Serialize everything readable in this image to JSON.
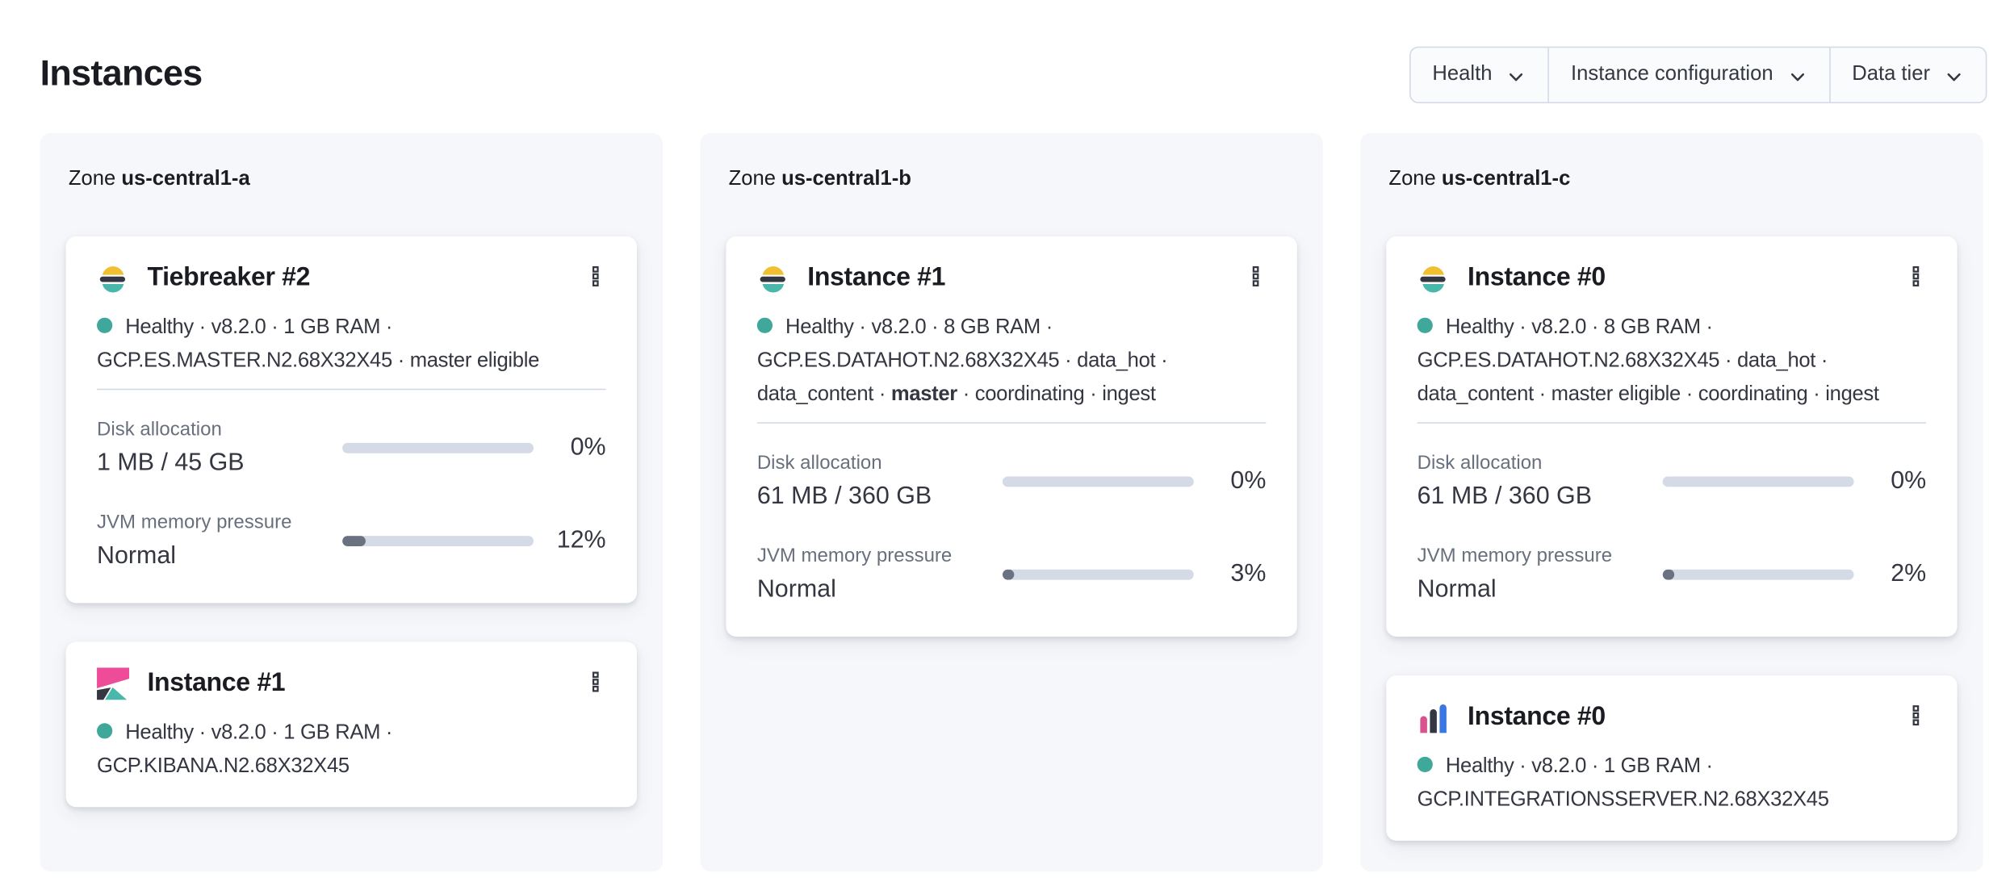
{
  "page": {
    "title": "Instances"
  },
  "filters": [
    {
      "label": "Health"
    },
    {
      "label": "Instance configuration"
    },
    {
      "label": "Data tier"
    }
  ],
  "icons": {
    "filter_button_caret": "chevron-down-icon",
    "card_menu": "kebab-boxes-vertical-icon",
    "health_indicator": "status-dot",
    "logos": [
      "elasticsearch-logo",
      "kibana-logo",
      "integrations-server-logo"
    ]
  },
  "colors": {
    "health_dot": "#40a79b",
    "panel_background": "#f6f7fa",
    "card_background": "#ffffff",
    "border": "#d3dae6",
    "progress_track": "#d5dbe6",
    "progress_fill": "#6a7180",
    "text_primary": "#1a1c21",
    "text_body": "#343741",
    "text_subdued": "#69707d",
    "logo_yellow": "#f1c030",
    "logo_teal": "#49b8aa",
    "logo_dark": "#343741",
    "logo_pink": "#ee4c98",
    "logo_bar_pink": "#d9548f",
    "logo_bar_blue": "#3b77e0"
  },
  "zones": [
    {
      "label": "Zone",
      "name": "us-central1-a",
      "instances": [
        {
          "title": "Tiebreaker #2",
          "logo": "elasticsearch-logo",
          "meta": [
            {
              "text": "Healthy"
            },
            {
              "text": "v8.2.0"
            },
            {
              "text": "1 GB RAM"
            },
            {
              "text": "GCP.ES.MASTER.N2.68X32X45"
            },
            {
              "text": "master eligible"
            }
          ],
          "metrics": [
            {
              "label": "Disk allocation",
              "value": "1 MB / 45 GB",
              "percent": 0,
              "percent_label": "0%"
            },
            {
              "label": "JVM memory pressure",
              "value": "Normal",
              "percent": 12,
              "percent_label": "12%"
            }
          ]
        },
        {
          "title": "Instance #1",
          "logo": "kibana-logo",
          "meta": [
            {
              "text": "Healthy"
            },
            {
              "text": "v8.2.0"
            },
            {
              "text": "1 GB RAM"
            },
            {
              "text": "GCP.KIBANA.N2.68X32X45"
            }
          ],
          "metrics": []
        }
      ]
    },
    {
      "label": "Zone",
      "name": "us-central1-b",
      "instances": [
        {
          "title": "Instance #1",
          "logo": "elasticsearch-logo",
          "meta": [
            {
              "text": "Healthy"
            },
            {
              "text": "v8.2.0"
            },
            {
              "text": "8 GB RAM"
            },
            {
              "text": "GCP.ES.DATAHOT.N2.68X32X45"
            },
            {
              "text": "data_hot"
            },
            {
              "text": "data_content"
            },
            {
              "text": "master",
              "bold": true
            },
            {
              "text": "coordinating"
            },
            {
              "text": "ingest"
            }
          ],
          "metrics": [
            {
              "label": "Disk allocation",
              "value": "61 MB / 360 GB",
              "percent": 0,
              "percent_label": "0%"
            },
            {
              "label": "JVM memory pressure",
              "value": "Normal",
              "percent": 3,
              "percent_label": "3%"
            }
          ]
        }
      ]
    },
    {
      "label": "Zone",
      "name": "us-central1-c",
      "instances": [
        {
          "title": "Instance #0",
          "logo": "elasticsearch-logo",
          "meta": [
            {
              "text": "Healthy"
            },
            {
              "text": "v8.2.0"
            },
            {
              "text": "8 GB RAM"
            },
            {
              "text": "GCP.ES.DATAHOT.N2.68X32X45"
            },
            {
              "text": "data_hot"
            },
            {
              "text": "data_content"
            },
            {
              "text": "master eligible"
            },
            {
              "text": "coordinating"
            },
            {
              "text": "ingest"
            }
          ],
          "metrics": [
            {
              "label": "Disk allocation",
              "value": "61 MB / 360 GB",
              "percent": 0,
              "percent_label": "0%"
            },
            {
              "label": "JVM memory pressure",
              "value": "Normal",
              "percent": 2,
              "percent_label": "2%"
            }
          ]
        },
        {
          "title": "Instance #0",
          "logo": "integrations-server-logo",
          "meta": [
            {
              "text": "Healthy"
            },
            {
              "text": "v8.2.0"
            },
            {
              "text": "1 GB RAM"
            },
            {
              "text": "GCP.INTEGRATIONSSERVER.N2.68X32X45"
            }
          ],
          "metrics": []
        }
      ]
    }
  ]
}
